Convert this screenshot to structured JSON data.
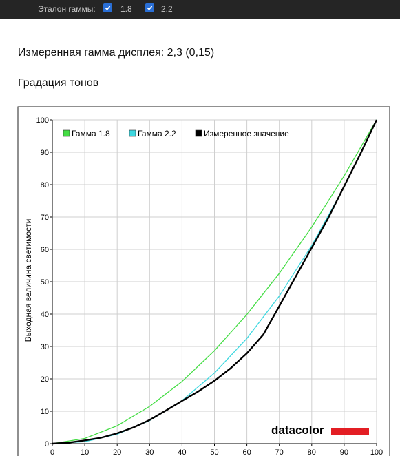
{
  "toolbar": {
    "label": "Эталон гаммы:",
    "options": [
      {
        "label": "1.8",
        "checked": true
      },
      {
        "label": "2.2",
        "checked": true
      }
    ]
  },
  "measured_text": "Измеренная гамма дисплея: 2,3 (0,15)",
  "section_title": "Градация тонов",
  "logo_text": "datacolor",
  "colors": {
    "gamma18": "#44dd44",
    "gamma22": "#3fd8e0",
    "measured": "#000000",
    "logo_bar": "#e31e24"
  },
  "chart_data": {
    "type": "line",
    "title": "",
    "xlabel": "",
    "ylabel": "Выходная величина светимости",
    "xlim": [
      0,
      100
    ],
    "ylim": [
      0,
      100
    ],
    "x_ticks": [
      0,
      10,
      20,
      30,
      40,
      50,
      60,
      70,
      80,
      90,
      100
    ],
    "y_ticks": [
      0,
      10,
      20,
      30,
      40,
      50,
      60,
      70,
      80,
      90,
      100
    ],
    "grid": true,
    "legend_position": "top-left",
    "series": [
      {
        "name": "Гамма 1.8",
        "color": "#44dd44",
        "x": [
          0,
          10,
          20,
          30,
          40,
          50,
          60,
          70,
          80,
          90,
          100
        ],
        "y": [
          0,
          1.6,
          5.5,
          11.5,
          19.2,
          28.7,
          39.9,
          52.6,
          66.9,
          82.7,
          100
        ]
      },
      {
        "name": "Гамма 2.2",
        "color": "#3fd8e0",
        "x": [
          0,
          10,
          20,
          30,
          40,
          50,
          60,
          70,
          80,
          90,
          100
        ],
        "y": [
          0,
          0.6,
          2.9,
          7.1,
          13.3,
          21.8,
          32.5,
          45.6,
          61.2,
          79.3,
          100
        ]
      },
      {
        "name": "Измеренное значение",
        "color": "#000000",
        "x": [
          0,
          5,
          10,
          15,
          20,
          25,
          30,
          35,
          40,
          45,
          50,
          55,
          60,
          65,
          70,
          75,
          80,
          85,
          90,
          95,
          100
        ],
        "y": [
          0,
          0.3,
          1.0,
          1.8,
          3.2,
          5.0,
          7.3,
          10.2,
          13.2,
          16.1,
          19.4,
          23.3,
          27.9,
          33.6,
          42.5,
          51.5,
          60.5,
          69.5,
          79.5,
          89.5,
          100
        ]
      }
    ]
  }
}
